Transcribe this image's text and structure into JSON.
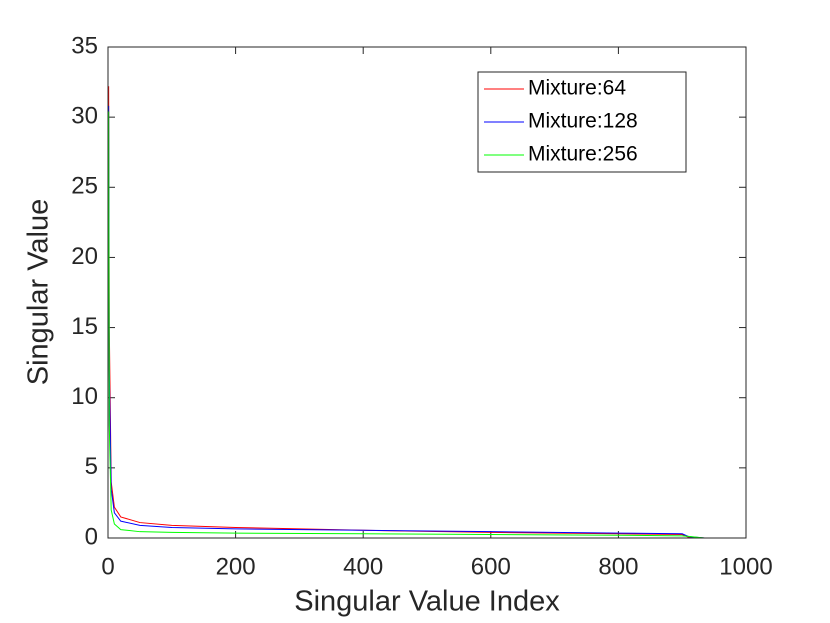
{
  "chart_data": {
    "type": "line",
    "xlabel": "Singular Value Index",
    "ylabel": "Singular Value",
    "x": [
      1,
      2,
      5,
      10,
      20,
      50,
      100,
      200,
      400,
      600,
      800,
      900,
      910,
      935
    ],
    "series": [
      {
        "name": "Mixture:64",
        "color": "#ff0000",
        "values": [
          32.2,
          15,
          4,
          2.2,
          1.5,
          1.1,
          0.9,
          0.75,
          0.55,
          0.4,
          0.3,
          0.25,
          0.05,
          0
        ]
      },
      {
        "name": "Mixture:128",
        "color": "#0000ff",
        "values": [
          30.8,
          12,
          3.5,
          1.8,
          1.2,
          0.9,
          0.75,
          0.65,
          0.55,
          0.45,
          0.35,
          0.3,
          0.1,
          0
        ]
      },
      {
        "name": "Mixture:256",
        "color": "#00ff00",
        "values": [
          30.4,
          8,
          2,
          1,
          0.6,
          0.45,
          0.4,
          0.35,
          0.3,
          0.25,
          0.2,
          0.15,
          0.12,
          0
        ]
      }
    ],
    "xlim": [
      0,
      1000
    ],
    "xticks": [
      0,
      200,
      400,
      600,
      800,
      1000
    ],
    "ylim": [
      0,
      35
    ],
    "yticks": [
      0,
      5,
      10,
      15,
      20,
      25,
      30,
      35
    ],
    "legend": "top-right",
    "grid": false
  }
}
